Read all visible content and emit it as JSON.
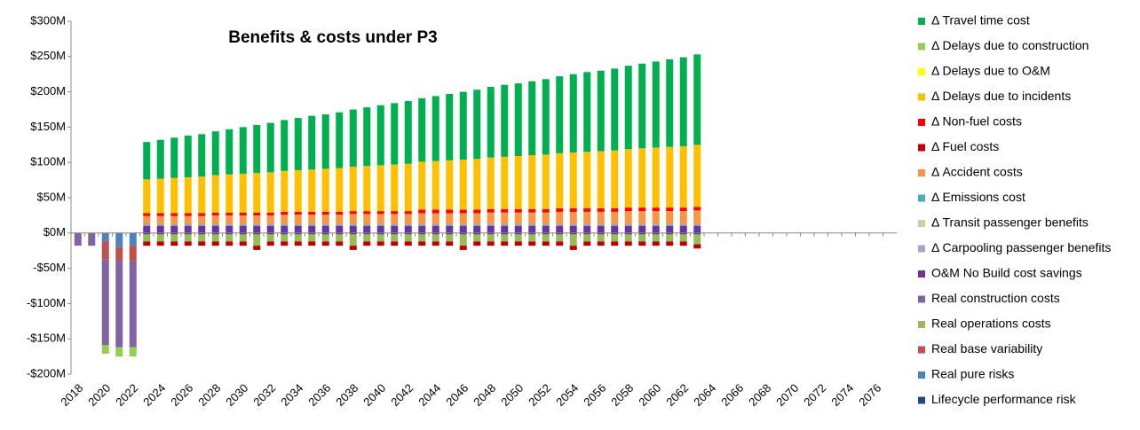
{
  "chart_data": {
    "type": "bar",
    "stacked": true,
    "title": "Benefits & costs under P3",
    "categories": [
      "2018",
      null,
      "2020",
      null,
      "2022",
      null,
      "2024",
      null,
      "2026",
      null,
      "2028",
      null,
      "2030",
      null,
      "2032",
      null,
      "2034",
      null,
      "2036",
      null,
      "2038",
      null,
      "2040",
      null,
      "2042",
      null,
      "2044",
      null,
      "2046",
      null,
      "2048",
      null,
      "2050",
      null,
      "2052",
      null,
      "2054",
      null,
      "2056",
      null,
      "2058",
      null,
      "2060",
      null,
      "2062",
      null,
      "2064",
      null,
      "2066",
      null,
      "2068",
      null,
      "2070",
      null,
      "2072",
      null,
      "2074",
      null,
      "2076",
      null
    ],
    "ylim": [
      -200,
      300
    ],
    "yticks": [
      {
        "value": -200,
        "label": "-$200M"
      },
      {
        "value": -150,
        "label": "-$150M"
      },
      {
        "value": -100,
        "label": "-$100M"
      },
      {
        "value": -50,
        "label": "-$50M"
      },
      {
        "value": 0,
        "label": "$0M"
      },
      {
        "value": 50,
        "label": "$50M"
      },
      {
        "value": 100,
        "label": "$100M"
      },
      {
        "value": 150,
        "label": "$150M"
      },
      {
        "value": 200,
        "label": "$200M"
      },
      {
        "value": 250,
        "label": "$250M"
      },
      {
        "value": 300,
        "label": "$300M"
      }
    ],
    "legend": "right",
    "series": [
      {
        "name": "Δ Travel time cost",
        "color": "#00b050",
        "values": [
          0,
          0,
          0,
          0,
          0,
          53,
          55,
          57,
          59,
          60,
          62,
          64,
          66,
          68,
          70,
          72,
          74,
          76,
          77,
          79,
          81,
          83,
          85,
          87,
          89,
          90,
          92,
          94,
          96,
          98,
          100,
          102,
          103,
          105,
          107,
          109,
          111,
          113,
          114,
          116,
          118,
          120,
          122,
          124,
          126,
          128,
          0,
          0,
          0,
          0,
          0,
          0,
          0,
          0,
          0,
          0,
          0,
          0,
          0,
          0
        ]
      },
      {
        "name": "Δ Delays due to construction",
        "color": "#92d050",
        "values": [
          0,
          0,
          -12,
          -13,
          -13,
          0,
          0,
          0,
          0,
          0,
          0,
          0,
          0,
          0,
          0,
          0,
          0,
          0,
          0,
          0,
          0,
          0,
          0,
          0,
          0,
          0,
          0,
          0,
          0,
          0,
          0,
          0,
          0,
          0,
          0,
          0,
          0,
          0,
          0,
          0,
          0,
          0,
          0,
          0,
          0,
          0,
          0,
          0,
          0,
          0,
          0,
          0,
          0,
          0,
          0,
          0,
          0,
          0,
          0,
          0
        ]
      },
      {
        "name": "Δ Delays due to O&M",
        "color": "#ffff00",
        "values": [
          0,
          0,
          0,
          0,
          0,
          0,
          0,
          0,
          0,
          0,
          0,
          0,
          0,
          0,
          0,
          0,
          0,
          0,
          0,
          0,
          0,
          0,
          0,
          0,
          0,
          0,
          0,
          0,
          0,
          0,
          0,
          0,
          0,
          0,
          0,
          0,
          0,
          0,
          0,
          0,
          0,
          0,
          0,
          0,
          0,
          0,
          0,
          0,
          0,
          0,
          0,
          0,
          0,
          0,
          0,
          0,
          0,
          0,
          0,
          0
        ]
      },
      {
        "name": "Δ Delays due to incidents",
        "color": "#ffc000",
        "values": [
          0,
          0,
          0,
          0,
          0,
          48,
          49,
          50,
          51,
          52,
          53,
          54,
          55,
          56,
          57,
          58,
          59,
          60,
          61,
          62,
          63,
          64,
          65,
          66,
          67,
          68,
          69,
          70,
          71,
          72,
          73,
          74,
          75,
          76,
          77,
          78,
          79,
          80,
          81,
          82,
          83,
          84,
          85,
          86,
          87,
          88,
          0,
          0,
          0,
          0,
          0,
          0,
          0,
          0,
          0,
          0,
          0,
          0,
          0,
          0
        ]
      },
      {
        "name": "Δ Non-fuel  costs",
        "color": "#ff0000",
        "values": [
          0,
          0,
          0,
          0,
          0,
          4,
          4,
          4,
          4,
          4,
          4,
          4,
          4,
          4,
          4,
          4,
          4,
          4,
          4,
          4,
          4,
          4,
          4,
          4,
          4,
          5,
          5,
          5,
          5,
          5,
          5,
          5,
          5,
          5,
          5,
          5,
          5,
          5,
          5,
          5,
          5,
          5,
          5,
          5,
          5,
          5,
          0,
          0,
          0,
          0,
          0,
          0,
          0,
          0,
          0,
          0,
          0,
          0,
          0,
          0
        ]
      },
      {
        "name": "Δ Fuel costs",
        "color": "#c00000",
        "values": [
          0,
          0,
          0,
          0,
          0,
          -6,
          -6,
          -6,
          -6,
          -6,
          -6,
          -6,
          -6,
          -6,
          -6,
          -6,
          -6,
          -6,
          -6,
          -6,
          -6,
          -6,
          -6,
          -6,
          -6,
          -6,
          -6,
          -6,
          -6,
          -6,
          -6,
          -6,
          -6,
          -6,
          -6,
          -6,
          -6,
          -6,
          -6,
          -6,
          -6,
          -6,
          -6,
          -6,
          -6,
          -6,
          0,
          0,
          0,
          0,
          0,
          0,
          0,
          0,
          0,
          0,
          0,
          0,
          0,
          0
        ]
      },
      {
        "name": "Δ Accident costs",
        "color": "#f79646",
        "values": [
          0,
          0,
          0,
          0,
          0,
          12,
          12,
          12,
          12,
          12,
          13,
          13,
          13,
          13,
          13,
          14,
          14,
          14,
          14,
          14,
          15,
          15,
          15,
          15,
          15,
          16,
          16,
          16,
          16,
          16,
          17,
          17,
          17,
          17,
          17,
          18,
          18,
          18,
          18,
          18,
          19,
          19,
          19,
          19,
          19,
          20,
          0,
          0,
          0,
          0,
          0,
          0,
          0,
          0,
          0,
          0,
          0,
          0,
          0,
          0
        ]
      },
      {
        "name": "Δ Emissions cost",
        "color": "#4bacc6",
        "values": [
          0,
          0,
          0,
          0,
          0,
          2,
          2,
          2,
          2,
          2,
          2,
          2,
          2,
          2,
          2,
          2,
          2,
          2,
          2,
          2,
          2,
          2,
          2,
          2,
          2,
          2,
          2,
          2,
          2,
          2,
          2,
          2,
          2,
          2,
          2,
          2,
          2,
          2,
          2,
          2,
          2,
          2,
          2,
          2,
          2,
          2,
          0,
          0,
          0,
          0,
          0,
          0,
          0,
          0,
          0,
          0,
          0,
          0,
          0,
          0
        ]
      },
      {
        "name": "Δ Transit passenger benefits",
        "color": "#c3d69b",
        "values": [
          0,
          0,
          0,
          0,
          0,
          0,
          0,
          0,
          0,
          0,
          0,
          0,
          0,
          0,
          0,
          0,
          0,
          0,
          0,
          0,
          0,
          0,
          0,
          0,
          0,
          0,
          0,
          0,
          0,
          0,
          0,
          0,
          0,
          0,
          0,
          0,
          0,
          0,
          0,
          0,
          0,
          0,
          0,
          0,
          0,
          0,
          0,
          0,
          0,
          0,
          0,
          0,
          0,
          0,
          0,
          0,
          0,
          0,
          0,
          0
        ]
      },
      {
        "name": "Δ Carpooling passenger benefits",
        "color": "#b3a2c7",
        "values": [
          0,
          0,
          0,
          0,
          0,
          0,
          0,
          0,
          0,
          0,
          0,
          0,
          0,
          0,
          0,
          0,
          0,
          0,
          0,
          0,
          0,
          0,
          0,
          0,
          0,
          0,
          0,
          0,
          0,
          0,
          0,
          0,
          0,
          0,
          0,
          0,
          0,
          0,
          0,
          0,
          0,
          0,
          0,
          0,
          0,
          0,
          0,
          0,
          0,
          0,
          0,
          0,
          0,
          0,
          0,
          0,
          0,
          0,
          0,
          0
        ]
      },
      {
        "name": "O&M No Build cost savings",
        "color": "#7030a0",
        "values": [
          0,
          0,
          0,
          0,
          0,
          10,
          10,
          10,
          10,
          10,
          10,
          10,
          10,
          10,
          10,
          10,
          10,
          10,
          10,
          10,
          10,
          10,
          10,
          10,
          10,
          10,
          10,
          10,
          10,
          10,
          10,
          10,
          10,
          10,
          10,
          10,
          10,
          10,
          10,
          10,
          10,
          10,
          10,
          10,
          10,
          10,
          0,
          0,
          0,
          0,
          0,
          0,
          0,
          0,
          0,
          0,
          0,
          0,
          0,
          0
        ]
      },
      {
        "name": "Real construction costs",
        "color": "#8064a2",
        "values": [
          -18,
          -18,
          -122,
          -122,
          -122,
          0,
          0,
          0,
          0,
          0,
          0,
          0,
          0,
          0,
          0,
          0,
          0,
          0,
          0,
          0,
          0,
          0,
          0,
          0,
          0,
          0,
          0,
          0,
          0,
          0,
          0,
          0,
          0,
          0,
          0,
          0,
          0,
          0,
          0,
          0,
          0,
          0,
          0,
          0,
          0,
          0,
          0,
          0,
          0,
          0,
          0,
          0,
          0,
          0,
          0,
          0,
          0,
          0,
          0,
          0
        ]
      },
      {
        "name": "Real operations costs",
        "color": "#9bbb59",
        "values": [
          0,
          0,
          0,
          0,
          0,
          -10,
          -10,
          -10,
          -10,
          -10,
          -10,
          -10,
          -10,
          -16,
          -10,
          -10,
          -10,
          -10,
          -10,
          -10,
          -16,
          -10,
          -10,
          -10,
          -10,
          -10,
          -10,
          -10,
          -16,
          -10,
          -10,
          -10,
          -10,
          -10,
          -10,
          -10,
          -16,
          -10,
          -10,
          -10,
          -10,
          -10,
          -10,
          -10,
          -10,
          -14,
          0,
          0,
          0,
          0,
          0,
          0,
          0,
          0,
          0,
          0,
          0,
          0,
          0,
          0
        ]
      },
      {
        "name": "Real base variability",
        "color": "#c0504d",
        "values": [
          0,
          0,
          -25,
          -20,
          -22,
          0,
          0,
          0,
          0,
          0,
          0,
          0,
          0,
          0,
          0,
          0,
          0,
          0,
          0,
          0,
          0,
          0,
          0,
          0,
          0,
          0,
          0,
          0,
          0,
          0,
          0,
          0,
          0,
          0,
          0,
          0,
          0,
          0,
          0,
          0,
          0,
          0,
          0,
          0,
          0,
          0,
          0,
          0,
          0,
          0,
          0,
          0,
          0,
          0,
          0,
          0,
          0,
          0,
          0,
          0
        ]
      },
      {
        "name": "Real pure risks",
        "color": "#4f81bd",
        "values": [
          0,
          0,
          -12,
          -20,
          -18,
          0,
          0,
          0,
          0,
          0,
          0,
          0,
          0,
          0,
          0,
          0,
          0,
          0,
          0,
          0,
          0,
          0,
          0,
          0,
          0,
          0,
          0,
          0,
          0,
          0,
          0,
          0,
          0,
          0,
          0,
          0,
          0,
          0,
          0,
          0,
          0,
          0,
          0,
          0,
          0,
          0,
          0,
          0,
          0,
          0,
          0,
          0,
          0,
          0,
          0,
          0,
          0,
          0,
          0,
          0
        ]
      },
      {
        "name": "Lifecycle performance risk",
        "color": "#1f497d",
        "values": [
          0,
          0,
          0,
          0,
          0,
          -2,
          -2,
          -2,
          -2,
          -2,
          -2,
          -2,
          -2,
          -2,
          -2,
          -2,
          -2,
          -2,
          -2,
          -2,
          -2,
          -2,
          -2,
          -2,
          -2,
          -2,
          -2,
          -2,
          -2,
          -2,
          -2,
          -2,
          -2,
          -2,
          -2,
          -2,
          -2,
          -2,
          -2,
          -2,
          -2,
          -2,
          -2,
          -2,
          -2,
          -2,
          0,
          0,
          0,
          0,
          0,
          0,
          0,
          0,
          0,
          0,
          0,
          0,
          0,
          0
        ]
      }
    ]
  }
}
